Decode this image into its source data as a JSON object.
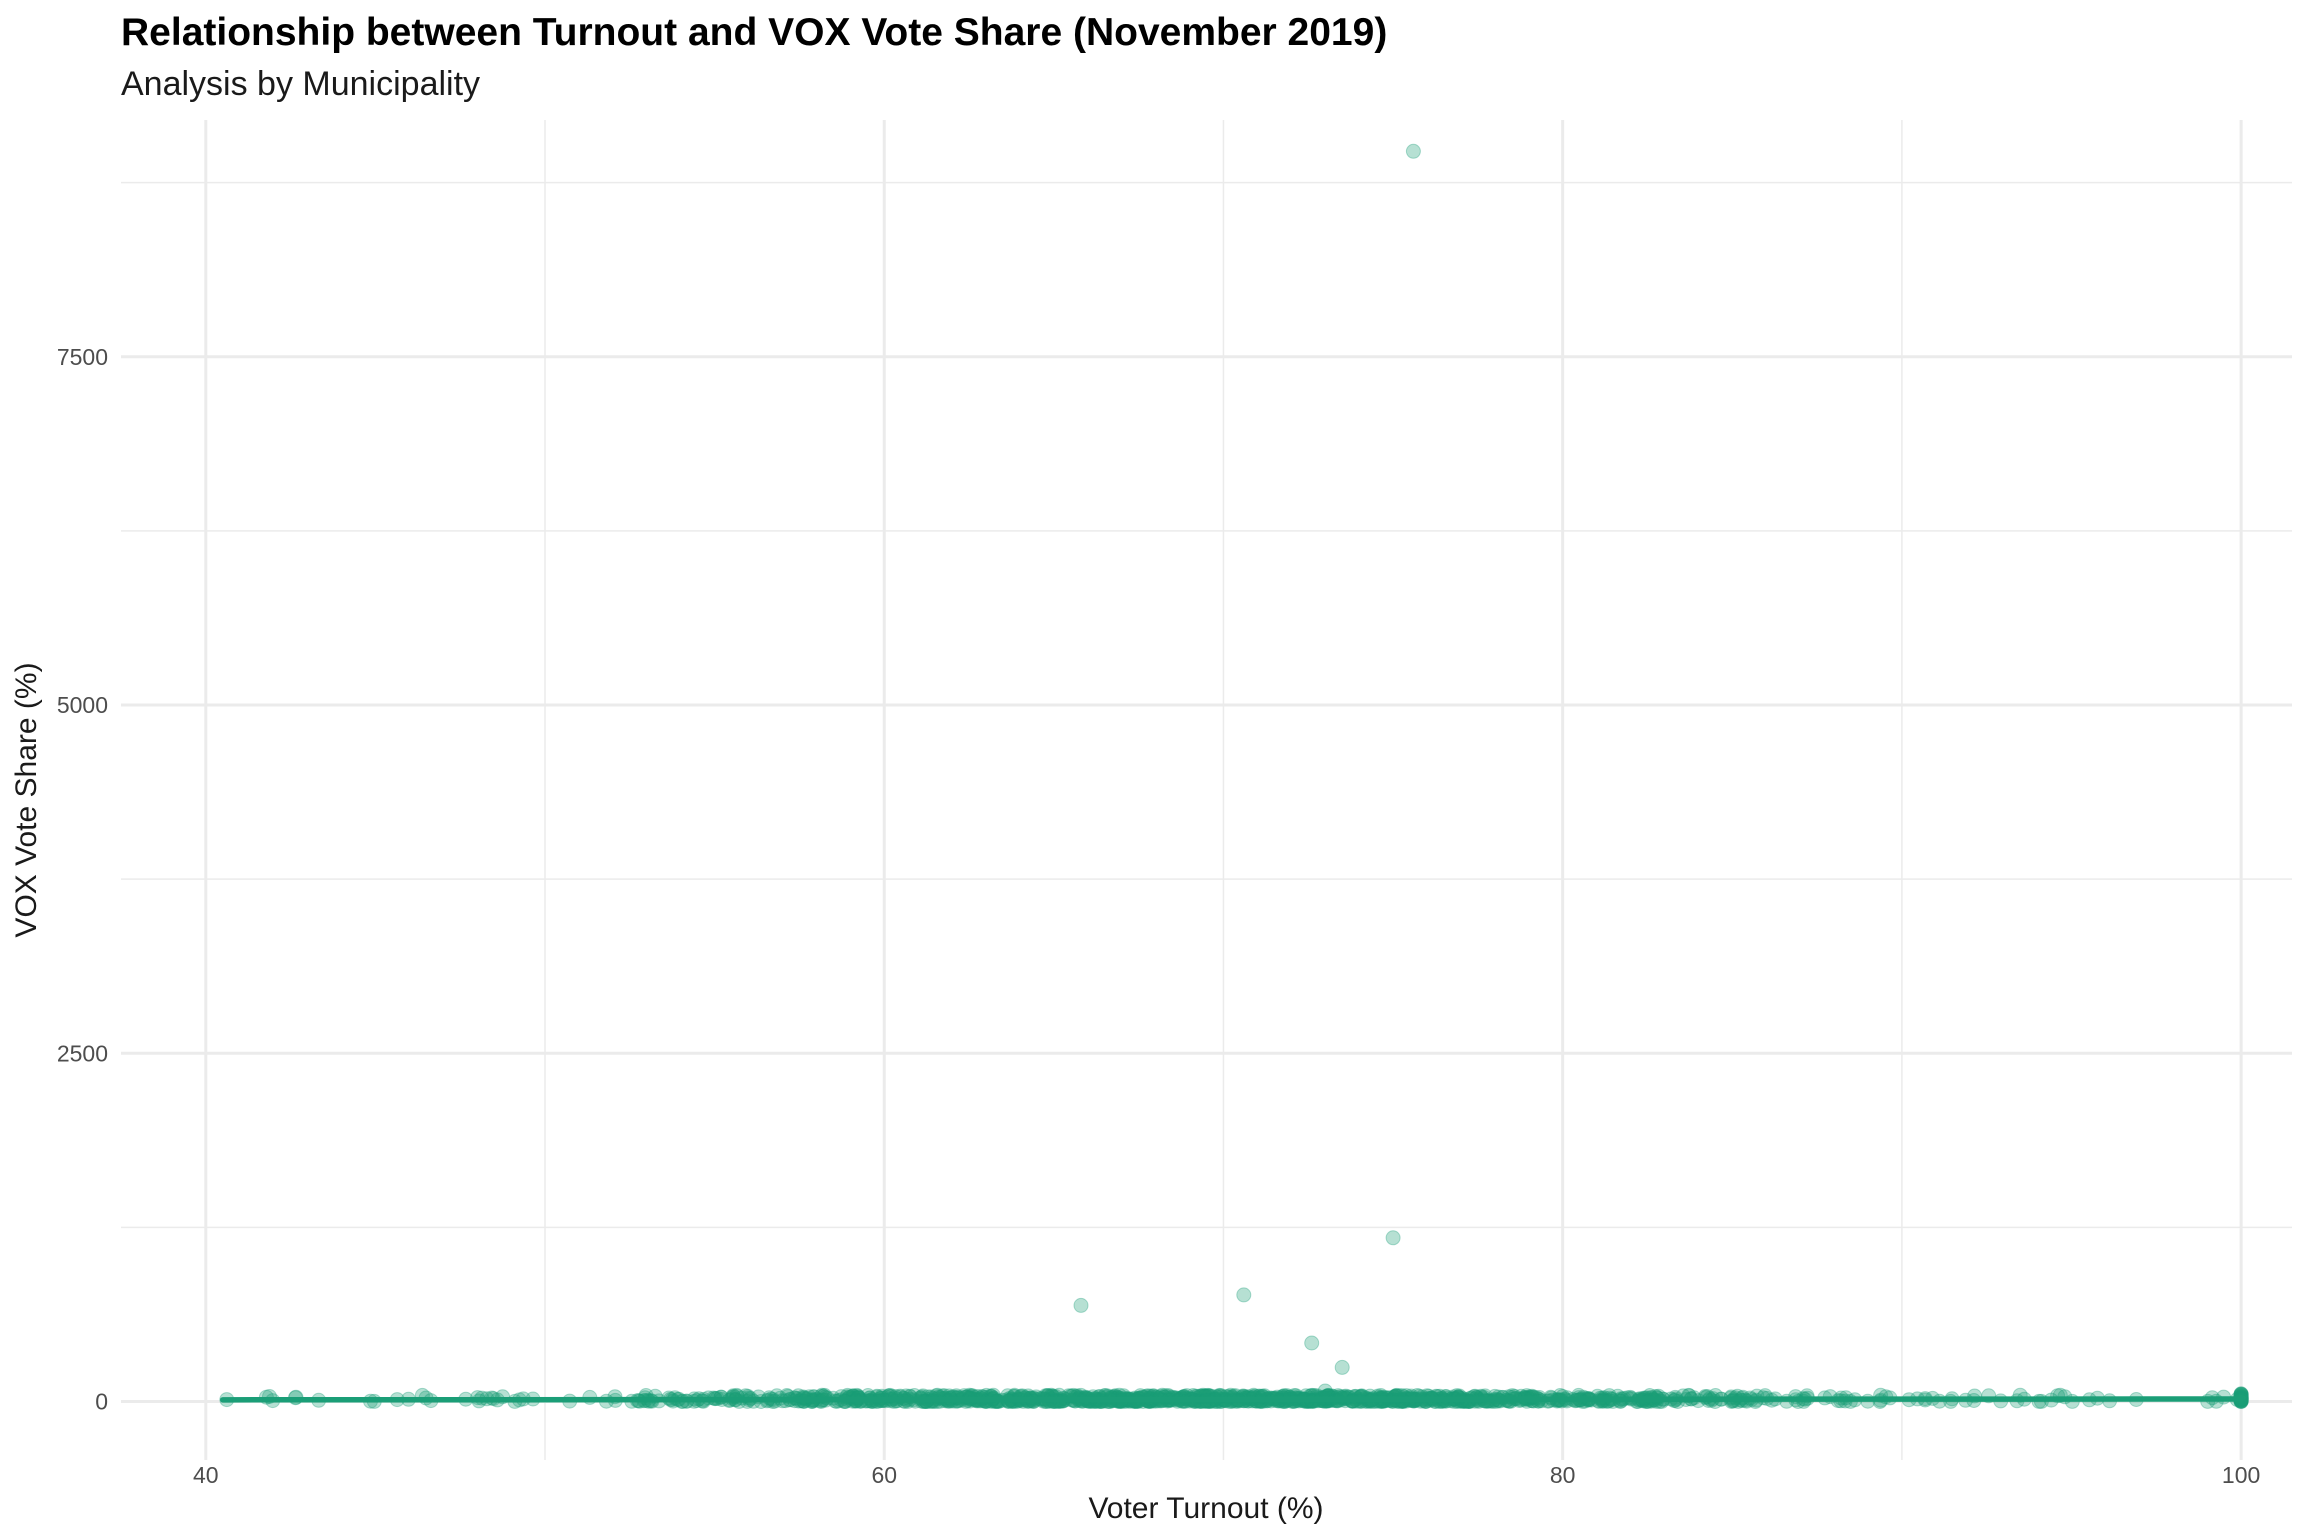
{
  "chart_data": {
    "type": "scatter",
    "title": "Relationship between Turnout and VOX Vote Share (November 2019)",
    "subtitle": "Analysis by Municipality",
    "xlabel": "Voter Turnout (%)",
    "ylabel": "VOX Vote Share (%)",
    "xlim": [
      37.5,
      101.5
    ],
    "ylim": [
      -420,
      9200
    ],
    "x_ticks": [
      40,
      60,
      80,
      100
    ],
    "y_ticks": [
      0,
      2500,
      5000,
      7500
    ],
    "x_tick_labels": [
      "40",
      "60",
      "80",
      "100"
    ],
    "y_tick_labels": [
      "0",
      "2500",
      "5000",
      "7500"
    ],
    "grid": true,
    "legend": "none",
    "colors": {
      "points": "#1b9e77",
      "trend": "#1b9e77",
      "grid": "#ebebeb"
    },
    "outliers": [
      {
        "x": 75.6,
        "y": 8975
      },
      {
        "x": 75.0,
        "y": 1175
      },
      {
        "x": 70.6,
        "y": 765
      },
      {
        "x": 65.8,
        "y": 690
      },
      {
        "x": 72.6,
        "y": 420
      },
      {
        "x": 73.5,
        "y": 245
      },
      {
        "x": 73.0,
        "y": 75
      }
    ],
    "cluster_points_description_range": {
      "x_min": 40.5,
      "x_max": 100,
      "y_min": 0,
      "y_max": 60
    },
    "trend_line": {
      "x": [
        40.5,
        100
      ],
      "y": [
        12,
        18
      ]
    }
  }
}
